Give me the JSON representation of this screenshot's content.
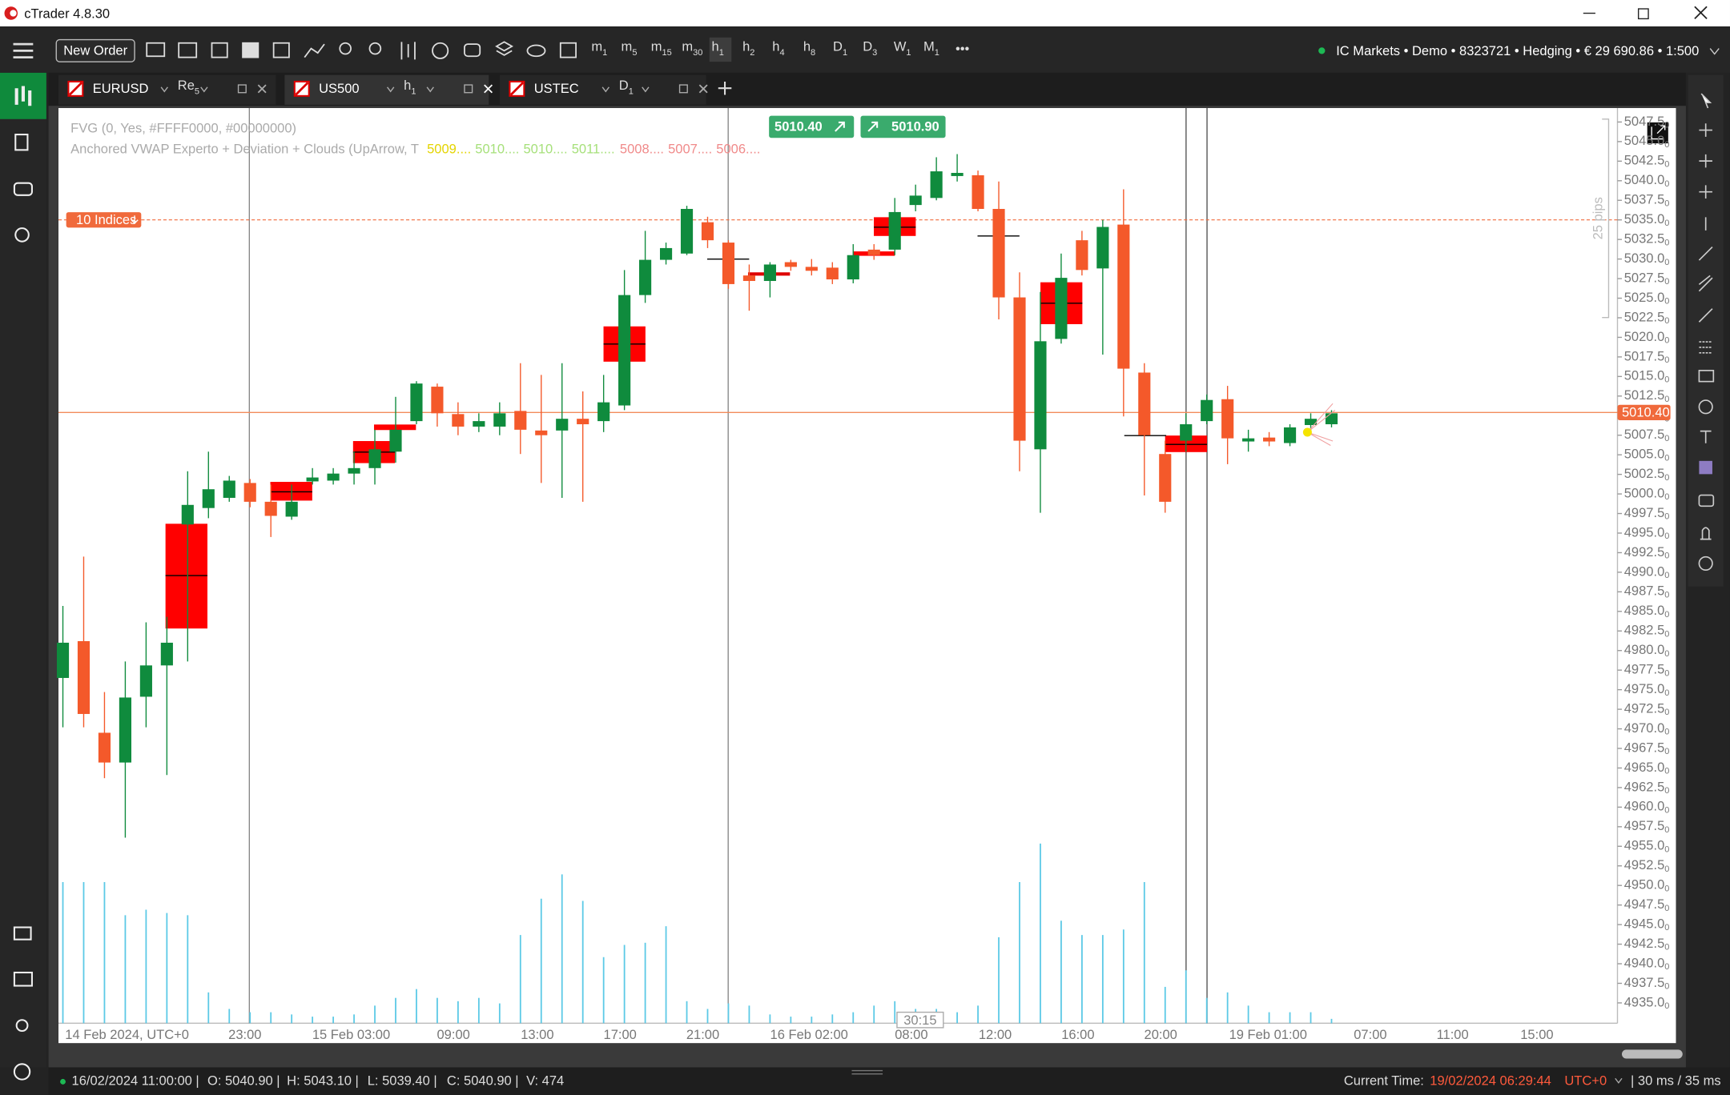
{
  "window": {
    "title": "cTrader 4.8.30"
  },
  "toolbar": {
    "new_order": "New Order",
    "timeframes": [
      {
        "u": "m",
        "n": "1"
      },
      {
        "u": "m",
        "n": "5"
      },
      {
        "u": "m",
        "n": "15"
      },
      {
        "u": "m",
        "n": "30"
      },
      {
        "u": "h",
        "n": "1"
      },
      {
        "u": "h",
        "n": "2"
      },
      {
        "u": "h",
        "n": "4"
      },
      {
        "u": "h",
        "n": "8"
      },
      {
        "u": "D",
        "n": "1"
      },
      {
        "u": "D",
        "n": "3"
      },
      {
        "u": "W",
        "n": "1"
      },
      {
        "u": "M",
        "n": "1"
      }
    ],
    "account": "IC Markets • Demo • 8323721 • Hedging • € 29 690.86 • 1:500"
  },
  "tabs": [
    {
      "symbol": "EURUSD",
      "timeframe": {
        "u": "Re",
        "n": "5"
      }
    },
    {
      "symbol": "US500",
      "timeframe": {
        "u": "h",
        "n": "1"
      }
    },
    {
      "symbol": "USTEC",
      "timeframe": {
        "u": "D",
        "n": "1"
      }
    }
  ],
  "chart_data": {
    "type": "candlestick",
    "indicators": [
      "FVG (0, Yes, #FFFF0000, #00000000)",
      "Anchored VWAP Experto + Deviation + Clouds (UpArrow, T"
    ],
    "vwap_values": [
      {
        "label": "5009....",
        "color": "#e4d400"
      },
      {
        "label": "5010....",
        "color": "#a6e07a"
      },
      {
        "label": "5010....",
        "color": "#a6e07a"
      },
      {
        "label": "5011....",
        "color": "#a6e07a"
      },
      {
        "label": "5008....",
        "color": "#f08a8a"
      },
      {
        "label": "5007....",
        "color": "#f08a8a"
      },
      {
        "label": "5006....",
        "color": "#f08a8a"
      }
    ],
    "sell_price": "5010.40",
    "buy_price": "5010.90",
    "current_price": {
      "value": 5010.4,
      "label": "5010.40"
    },
    "alert": {
      "value": 5035.0,
      "label": "10 Indices"
    },
    "ruler_label": "25 pips",
    "countdown": "30:15",
    "x_labels": [
      "14 Feb 2024, UTC+0",
      "23:00",
      "15 Feb 03:00",
      "09:00",
      "13:00",
      "17:00",
      "21:00",
      "16 Feb 02:00",
      "08:00",
      "12:00",
      "16:00",
      "20:00",
      "19 Feb 01:00",
      "07:00",
      "11:00",
      "15:00"
    ],
    "ylim": [
      4932.4,
      5049.0
    ],
    "yticks": [
      {
        "value": 5047.5,
        "label": "5047.50"
      },
      {
        "value": 5045,
        "label": "5045.00"
      },
      {
        "value": 5042.5,
        "label": "5042.50"
      },
      {
        "value": 5040,
        "label": "5040.00"
      },
      {
        "value": 5037.5,
        "label": "5037.50"
      },
      {
        "value": 5035,
        "label": "5035.00"
      },
      {
        "value": 5032.5,
        "label": "5032.50"
      },
      {
        "value": 5030,
        "label": "5030.00"
      },
      {
        "value": 5027.5,
        "label": "5027.50"
      },
      {
        "value": 5025,
        "label": "5025.00"
      },
      {
        "value": 5022.5,
        "label": "5022.50"
      },
      {
        "value": 5020,
        "label": "5020.00"
      },
      {
        "value": 5017.5,
        "label": "5017.50"
      },
      {
        "value": 5015,
        "label": "5015.00"
      },
      {
        "value": 5012.5,
        "label": "5012.50"
      },
      {
        "value": 5010,
        "label": "5010.00"
      },
      {
        "value": 5007.5,
        "label": "5007.50"
      },
      {
        "value": 5005,
        "label": "5005.00"
      },
      {
        "value": 5002.5,
        "label": "5002.50"
      },
      {
        "value": 5000,
        "label": "5000.00"
      },
      {
        "value": 4997.5,
        "label": "4997.50"
      },
      {
        "value": 4995,
        "label": "4995.00"
      },
      {
        "value": 4992.5,
        "label": "4992.50"
      },
      {
        "value": 4990,
        "label": "4990.00"
      },
      {
        "value": 4987.5,
        "label": "4987.50"
      },
      {
        "value": 4985,
        "label": "4985.00"
      },
      {
        "value": 4982.5,
        "label": "4982.50"
      },
      {
        "value": 4980,
        "label": "4980.00"
      },
      {
        "value": 4977.5,
        "label": "4977.50"
      },
      {
        "value": 4975,
        "label": "4975.00"
      },
      {
        "value": 4972.5,
        "label": "4972.50"
      },
      {
        "value": 4970,
        "label": "4970.00"
      },
      {
        "value": 4967.5,
        "label": "4967.50"
      },
      {
        "value": 4965,
        "label": "4965.00"
      },
      {
        "value": 4962.5,
        "label": "4962.50"
      },
      {
        "value": 4960,
        "label": "4960.00"
      },
      {
        "value": 4957.5,
        "label": "4957.50"
      },
      {
        "value": 4955,
        "label": "4955.00"
      },
      {
        "value": 4952.5,
        "label": "4952.50"
      },
      {
        "value": 4950,
        "label": "4950.00"
      },
      {
        "value": 4947.5,
        "label": "4947.50"
      },
      {
        "value": 4945,
        "label": "4945.00"
      },
      {
        "value": 4942.5,
        "label": "4942.50"
      },
      {
        "value": 4940,
        "label": "4940.00"
      },
      {
        "value": 4937.5,
        "label": "4937.50"
      },
      {
        "value": 4935,
        "label": "4935.00"
      }
    ],
    "up_color": "#0f8b3d",
    "down_color": "#f4592a",
    "volume_color": "#5bc9e6",
    "candles": [
      {
        "open": 4976.5,
        "high": 4985.7,
        "low": 4970.2,
        "close": 4981.0
      },
      {
        "open": 4981.2,
        "high": 4992.0,
        "low": 4970.2,
        "close": 4971.9
      },
      {
        "open": 4969.5,
        "high": 4974.7,
        "low": 4963.7,
        "close": 4965.7
      },
      {
        "open": 4965.7,
        "high": 4978.6,
        "low": 4956.1,
        "close": 4974.0
      },
      {
        "open": 4974.1,
        "high": 4983.6,
        "low": 4970.2,
        "close": 4978.1
      },
      {
        "open": 4978.1,
        "high": 4984.3,
        "low": 4964.1,
        "close": 4981.0
      },
      {
        "open": 4996.1,
        "high": 5002.9,
        "low": 4978.6,
        "close": 4998.6
      },
      {
        "open": 4998.2,
        "high": 5005.4,
        "low": 4996.9,
        "close": 5000.6
      },
      {
        "open": 4999.5,
        "high": 5002.3,
        "low": 4999.0,
        "close": 5001.7
      },
      {
        "open": 5001.4,
        "high": 5001.9,
        "low": 4998.3,
        "close": 4999.0
      },
      {
        "open": 4999.0,
        "high": 5001.2,
        "low": 4994.5,
        "close": 4997.2
      },
      {
        "open": 4997.1,
        "high": 5001.2,
        "low": 4996.7,
        "close": 4999.0
      },
      {
        "open": 5001.6,
        "high": 5003.3,
        "low": 5001.2,
        "close": 5002.1
      },
      {
        "open": 5001.7,
        "high": 5003.3,
        "low": 5001.2,
        "close": 5002.6
      },
      {
        "open": 5002.6,
        "high": 5005.4,
        "low": 5001.2,
        "close": 5003.3
      },
      {
        "open": 5003.3,
        "high": 5008.2,
        "low": 5001.2,
        "close": 5005.7
      },
      {
        "open": 5005.4,
        "high": 5012.4,
        "low": 5004.0,
        "close": 5008.2
      },
      {
        "open": 5009.3,
        "high": 5014.4,
        "low": 5008.9,
        "close": 5014.1
      },
      {
        "open": 5013.7,
        "high": 5014.1,
        "low": 5008.6,
        "close": 5010.3
      },
      {
        "open": 5010.2,
        "high": 5011.7,
        "low": 5007.5,
        "close": 5008.6
      },
      {
        "open": 5008.6,
        "high": 5010.3,
        "low": 5007.9,
        "close": 5009.3
      },
      {
        "open": 5008.6,
        "high": 5011.7,
        "low": 5007.5,
        "close": 5010.3
      },
      {
        "open": 5010.6,
        "high": 5016.7,
        "low": 5005.1,
        "close": 5008.2
      },
      {
        "open": 5008.1,
        "high": 5015.2,
        "low": 5001.4,
        "close": 5007.5
      },
      {
        "open": 5008.1,
        "high": 5016.7,
        "low": 4999.5,
        "close": 5009.6
      },
      {
        "open": 5009.6,
        "high": 5013.1,
        "low": 4999.0,
        "close": 5008.9
      },
      {
        "open": 5009.3,
        "high": 5015.2,
        "low": 5007.9,
        "close": 5011.7
      },
      {
        "open": 5011.3,
        "high": 5028.6,
        "low": 5010.7,
        "close": 5025.4
      },
      {
        "open": 5025.4,
        "high": 5033.6,
        "low": 5024.4,
        "close": 5029.9
      },
      {
        "open": 5029.9,
        "high": 5032.1,
        "low": 5029.3,
        "close": 5031.4
      },
      {
        "open": 5030.7,
        "high": 5036.8,
        "low": 5030.5,
        "close": 5036.4
      },
      {
        "open": 5034.7,
        "high": 5035.4,
        "low": 5031.4,
        "close": 5032.4
      },
      {
        "open": 5032.1,
        "high": 5032.4,
        "low": 5026.2,
        "close": 5026.8
      },
      {
        "open": 5027.9,
        "high": 5029.3,
        "low": 5023.4,
        "close": 5027.2
      },
      {
        "open": 5027.2,
        "high": 5029.6,
        "low": 5025.1,
        "close": 5029.3
      },
      {
        "open": 5029.6,
        "high": 5029.9,
        "low": 5028.5,
        "close": 5029.0
      },
      {
        "open": 5029.0,
        "high": 5030.0,
        "low": 5027.9,
        "close": 5028.5
      },
      {
        "open": 5028.9,
        "high": 5029.6,
        "low": 5026.8,
        "close": 5027.4
      },
      {
        "open": 5027.4,
        "high": 5031.9,
        "low": 5026.9,
        "close": 5030.5
      },
      {
        "open": 5031.2,
        "high": 5031.9,
        "low": 5029.9,
        "close": 5030.5
      },
      {
        "open": 5031.2,
        "high": 5037.8,
        "low": 5030.5,
        "close": 5036.0
      },
      {
        "open": 5036.9,
        "high": 5039.5,
        "low": 5036.1,
        "close": 5038.1
      },
      {
        "open": 5037.8,
        "high": 5043.0,
        "low": 5037.5,
        "close": 5041.2
      },
      {
        "open": 5040.6,
        "high": 5043.4,
        "low": 5039.9,
        "close": 5041.0
      },
      {
        "open": 5040.7,
        "high": 5041.3,
        "low": 5036.1,
        "close": 5036.4
      },
      {
        "open": 5036.4,
        "high": 5039.9,
        "low": 5022.3,
        "close": 5025.1
      },
      {
        "open": 5025.1,
        "high": 5028.3,
        "low": 5002.9,
        "close": 5006.8
      },
      {
        "open": 5005.7,
        "high": 5025.8,
        "low": 4997.6,
        "close": 5019.5
      },
      {
        "open": 5019.8,
        "high": 5030.7,
        "low": 5019.2,
        "close": 5027.6
      },
      {
        "open": 5032.4,
        "high": 5033.6,
        "low": 5027.9,
        "close": 5028.6
      },
      {
        "open": 5028.8,
        "high": 5035.0,
        "low": 5017.8,
        "close": 5034.1
      },
      {
        "open": 5034.4,
        "high": 5038.9,
        "low": 5009.9,
        "close": 5016.0
      },
      {
        "open": 5015.5,
        "high": 5016.7,
        "low": 4999.8,
        "close": 5007.5
      },
      {
        "open": 5005.1,
        "high": 5006.8,
        "low": 4997.6,
        "close": 4999.0
      },
      {
        "open": 5006.8,
        "high": 5010.3,
        "low": 5005.4,
        "close": 5008.9
      },
      {
        "open": 5009.3,
        "high": 5012.7,
        "low": 5008.9,
        "close": 5012.0
      },
      {
        "open": 5012.1,
        "high": 5013.8,
        "low": 5003.8,
        "close": 5007.1
      },
      {
        "open": 5006.7,
        "high": 5008.2,
        "low": 5005.4,
        "close": 5007.1
      },
      {
        "open": 5007.2,
        "high": 5007.9,
        "low": 5006.1,
        "close": 5006.7
      },
      {
        "open": 5006.5,
        "high": 5008.9,
        "low": 5006.1,
        "close": 5008.5
      },
      {
        "open": 5008.8,
        "high": 5010.3,
        "low": 5007.9,
        "close": 5009.6
      },
      {
        "open": 5008.9,
        "high": 5010.7,
        "low": 5008.5,
        "close": 5010.3
      }
    ],
    "volumes": [
      128,
      128,
      128,
      98,
      103,
      100,
      98,
      28,
      13,
      10,
      10,
      8,
      6,
      6,
      8,
      16,
      23,
      31,
      23,
      20,
      23,
      18,
      80,
      113,
      135,
      111,
      60,
      71,
      73,
      88,
      20,
      13,
      18,
      16,
      8,
      6,
      6,
      8,
      10,
      16,
      20,
      13,
      13,
      10,
      16,
      78,
      128,
      163,
      93,
      80,
      80,
      85,
      128,
      33,
      48,
      23,
      28,
      16,
      10,
      10,
      10,
      4
    ]
  },
  "status_bar": {
    "ohlc": [
      "16/02/2024 11:00:00 |",
      "O: 5040.90 |",
      "H: 5043.10 |",
      "L: 5039.40 |",
      "C: 5040.90 |",
      "V: 474"
    ],
    "current_time_label": "Current Time:",
    "current_time": "19/02/2024 06:29:44",
    "timezone": "UTC+0",
    "latency": "| 30 ms / 35 ms"
  }
}
